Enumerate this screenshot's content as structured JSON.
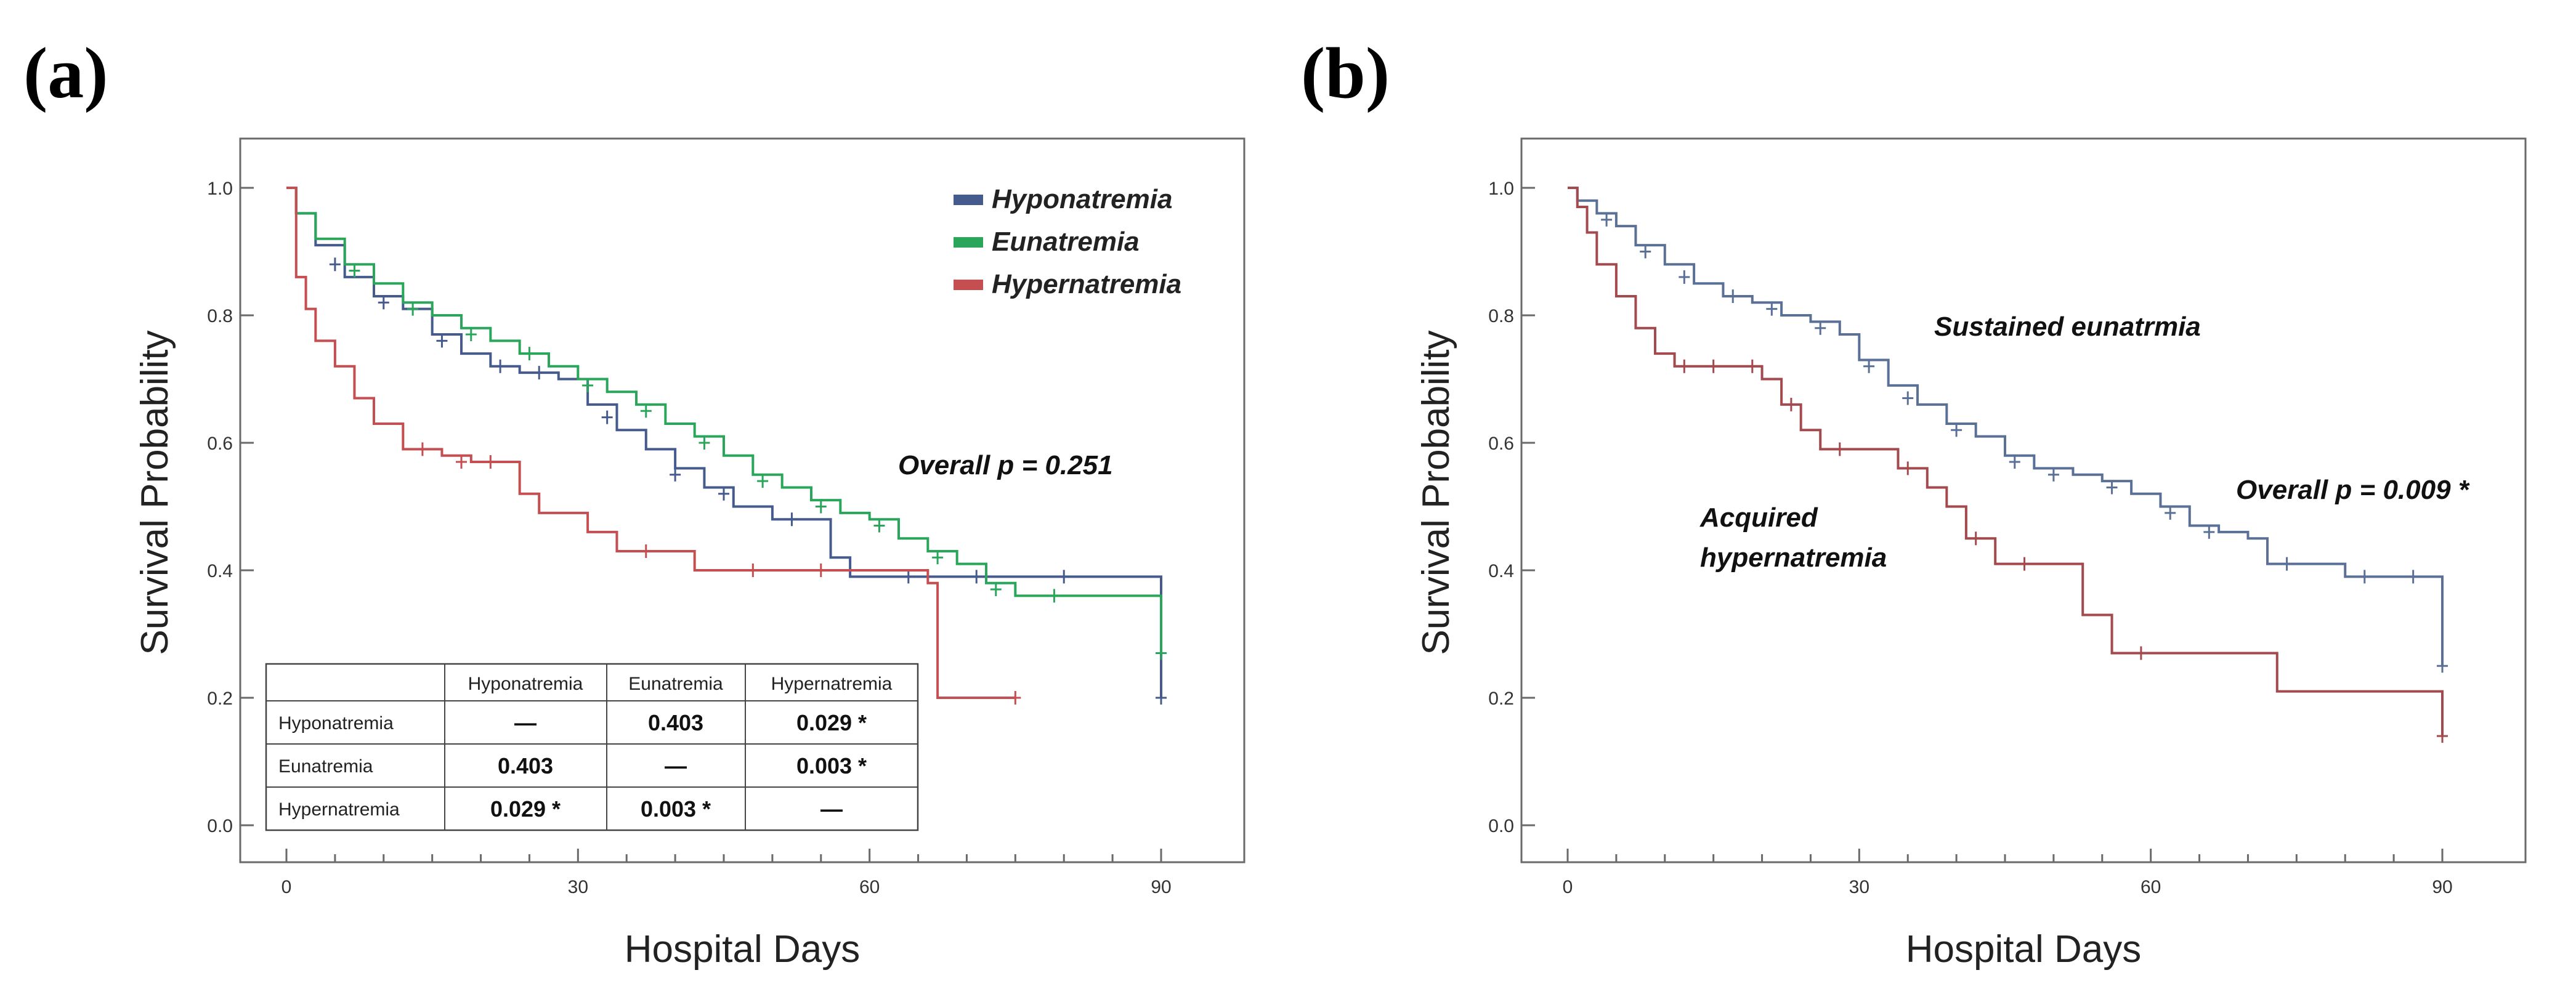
{
  "chart_data": [
    {
      "panel": "(a)",
      "type": "line",
      "subtype": "kaplan-meier survival curves",
      "xlabel": "Hospital Days",
      "ylabel": "Survival Probability",
      "xlim": [
        0,
        90
      ],
      "ylim": [
        0,
        1
      ],
      "xticks": [
        "0",
        "30",
        "60",
        "90"
      ],
      "yticks": [
        "0.0",
        "0.2",
        "0.4",
        "0.6",
        "0.8",
        "1.0"
      ],
      "legend_position": "top-right",
      "series": [
        {
          "name": "Hyponatremia",
          "color": "#465b8d",
          "steps": [
            [
              0,
              1.0
            ],
            [
              1,
              0.96
            ],
            [
              3,
              0.91
            ],
            [
              6,
              0.86
            ],
            [
              9,
              0.83
            ],
            [
              12,
              0.81
            ],
            [
              15,
              0.77
            ],
            [
              18,
              0.74
            ],
            [
              21,
              0.72
            ],
            [
              24,
              0.71
            ],
            [
              28,
              0.7
            ],
            [
              31,
              0.66
            ],
            [
              34,
              0.62
            ],
            [
              37,
              0.59
            ],
            [
              40,
              0.56
            ],
            [
              43,
              0.53
            ],
            [
              46,
              0.5
            ],
            [
              50,
              0.48
            ],
            [
              55,
              0.48
            ],
            [
              56,
              0.42
            ],
            [
              58,
              0.39
            ],
            [
              65,
              0.39
            ],
            [
              90,
              0.39
            ],
            [
              90,
              0.2
            ]
          ],
          "censors": [
            [
              5,
              0.88
            ],
            [
              10,
              0.82
            ],
            [
              16,
              0.76
            ],
            [
              22,
              0.72
            ],
            [
              26,
              0.71
            ],
            [
              33,
              0.64
            ],
            [
              40,
              0.55
            ],
            [
              45,
              0.52
            ],
            [
              52,
              0.48
            ],
            [
              64,
              0.39
            ],
            [
              71,
              0.39
            ],
            [
              80,
              0.39
            ],
            [
              90,
              0.2
            ]
          ]
        },
        {
          "name": "Eunatremia",
          "color": "#2aa65b",
          "steps": [
            [
              0,
              1.0
            ],
            [
              1,
              0.96
            ],
            [
              3,
              0.92
            ],
            [
              6,
              0.88
            ],
            [
              9,
              0.85
            ],
            [
              12,
              0.82
            ],
            [
              15,
              0.8
            ],
            [
              18,
              0.78
            ],
            [
              21,
              0.76
            ],
            [
              24,
              0.74
            ],
            [
              27,
              0.72
            ],
            [
              30,
              0.7
            ],
            [
              33,
              0.68
            ],
            [
              36,
              0.66
            ],
            [
              39,
              0.63
            ],
            [
              42,
              0.61
            ],
            [
              45,
              0.58
            ],
            [
              48,
              0.55
            ],
            [
              51,
              0.53
            ],
            [
              54,
              0.51
            ],
            [
              57,
              0.49
            ],
            [
              60,
              0.48
            ],
            [
              63,
              0.45
            ],
            [
              66,
              0.43
            ],
            [
              69,
              0.41
            ],
            [
              72,
              0.38
            ],
            [
              75,
              0.36
            ],
            [
              80,
              0.36
            ],
            [
              88,
              0.36
            ],
            [
              90,
              0.27
            ]
          ],
          "censors": [
            [
              7,
              0.87
            ],
            [
              13,
              0.81
            ],
            [
              19,
              0.77
            ],
            [
              25,
              0.74
            ],
            [
              31,
              0.69
            ],
            [
              37,
              0.65
            ],
            [
              43,
              0.6
            ],
            [
              49,
              0.54
            ],
            [
              55,
              0.5
            ],
            [
              61,
              0.47
            ],
            [
              67,
              0.42
            ],
            [
              73,
              0.37
            ],
            [
              79,
              0.36
            ],
            [
              90,
              0.27
            ]
          ]
        },
        {
          "name": "Hypernatremia",
          "color": "#c44e50",
          "steps": [
            [
              0,
              1.0
            ],
            [
              1,
              0.86
            ],
            [
              2,
              0.81
            ],
            [
              3,
              0.76
            ],
            [
              5,
              0.72
            ],
            [
              7,
              0.67
            ],
            [
              9,
              0.63
            ],
            [
              12,
              0.59
            ],
            [
              16,
              0.58
            ],
            [
              19,
              0.57
            ],
            [
              24,
              0.52
            ],
            [
              26,
              0.49
            ],
            [
              31,
              0.46
            ],
            [
              34,
              0.43
            ],
            [
              38,
              0.43
            ],
            [
              42,
              0.4
            ],
            [
              50,
              0.4
            ],
            [
              57,
              0.4
            ],
            [
              66,
              0.38
            ],
            [
              67,
              0.2
            ],
            [
              75,
              0.2
            ]
          ],
          "censors": [
            [
              14,
              0.59
            ],
            [
              18,
              0.57
            ],
            [
              21,
              0.57
            ],
            [
              37,
              0.43
            ],
            [
              48,
              0.4
            ],
            [
              55,
              0.4
            ],
            [
              75,
              0.2
            ]
          ]
        }
      ],
      "annotations": [
        "Overall p = 0.251"
      ],
      "pairwise_table": {
        "columns": [
          "Hyponatremia",
          "Eunatremia",
          "Hypernatremia"
        ],
        "rows": [
          {
            "label": "Hyponatremia",
            "cells": [
              "—",
              "0.403",
              "0.029 *"
            ]
          },
          {
            "label": "Eunatremia",
            "cells": [
              "0.403",
              "—",
              "0.003 *"
            ]
          },
          {
            "label": "Hypernatremia",
            "cells": [
              "0.029 *",
              "0.003 *",
              "—"
            ]
          }
        ]
      }
    },
    {
      "panel": "(b)",
      "type": "line",
      "subtype": "kaplan-meier survival curves",
      "xlabel": "Hospital Days",
      "ylabel": "Survival Probability",
      "xlim": [
        0,
        90
      ],
      "ylim": [
        0,
        1
      ],
      "xticks": [
        "0",
        "30",
        "60",
        "90"
      ],
      "yticks": [
        "0.0",
        "0.2",
        "0.4",
        "0.6",
        "0.8",
        "1.0"
      ],
      "series": [
        {
          "name": "Sustained eunatrmia",
          "color": "#5a7096",
          "steps": [
            [
              0,
              1.0
            ],
            [
              1,
              0.98
            ],
            [
              3,
              0.96
            ],
            [
              5,
              0.94
            ],
            [
              7,
              0.91
            ],
            [
              10,
              0.88
            ],
            [
              13,
              0.85
            ],
            [
              16,
              0.83
            ],
            [
              19,
              0.82
            ],
            [
              22,
              0.8
            ],
            [
              25,
              0.79
            ],
            [
              28,
              0.77
            ],
            [
              30,
              0.73
            ],
            [
              33,
              0.69
            ],
            [
              36,
              0.66
            ],
            [
              39,
              0.63
            ],
            [
              42,
              0.61
            ],
            [
              45,
              0.58
            ],
            [
              48,
              0.56
            ],
            [
              52,
              0.55
            ],
            [
              55,
              0.54
            ],
            [
              58,
              0.52
            ],
            [
              61,
              0.5
            ],
            [
              64,
              0.47
            ],
            [
              67,
              0.46
            ],
            [
              70,
              0.45
            ],
            [
              72,
              0.41
            ],
            [
              76,
              0.41
            ],
            [
              80,
              0.39
            ],
            [
              90,
              0.39
            ],
            [
              90,
              0.25
            ]
          ],
          "censors": [
            [
              4,
              0.95
            ],
            [
              8,
              0.9
            ],
            [
              12,
              0.86
            ],
            [
              17,
              0.83
            ],
            [
              21,
              0.81
            ],
            [
              26,
              0.78
            ],
            [
              31,
              0.72
            ],
            [
              35,
              0.67
            ],
            [
              40,
              0.62
            ],
            [
              46,
              0.57
            ],
            [
              50,
              0.55
            ],
            [
              56,
              0.53
            ],
            [
              62,
              0.49
            ],
            [
              66,
              0.46
            ],
            [
              74,
              0.41
            ],
            [
              82,
              0.39
            ],
            [
              87,
              0.39
            ],
            [
              90,
              0.25
            ]
          ]
        },
        {
          "name": "Acquired hypernatremia",
          "color": "#a24a4e",
          "steps": [
            [
              0,
              1.0
            ],
            [
              1,
              0.97
            ],
            [
              2,
              0.93
            ],
            [
              3,
              0.88
            ],
            [
              5,
              0.83
            ],
            [
              7,
              0.78
            ],
            [
              9,
              0.74
            ],
            [
              11,
              0.72
            ],
            [
              14,
              0.72
            ],
            [
              18,
              0.72
            ],
            [
              20,
              0.7
            ],
            [
              22,
              0.66
            ],
            [
              24,
              0.62
            ],
            [
              26,
              0.59
            ],
            [
              30,
              0.59
            ],
            [
              34,
              0.56
            ],
            [
              37,
              0.53
            ],
            [
              39,
              0.5
            ],
            [
              41,
              0.45
            ],
            [
              44,
              0.41
            ],
            [
              50,
              0.41
            ],
            [
              53,
              0.33
            ],
            [
              56,
              0.27
            ],
            [
              62,
              0.27
            ],
            [
              72,
              0.27
            ],
            [
              73,
              0.21
            ],
            [
              90,
              0.21
            ],
            [
              90,
              0.14
            ]
          ],
          "censors": [
            [
              12,
              0.72
            ],
            [
              15,
              0.72
            ],
            [
              19,
              0.72
            ],
            [
              23,
              0.66
            ],
            [
              28,
              0.59
            ],
            [
              35,
              0.56
            ],
            [
              42,
              0.45
            ],
            [
              47,
              0.41
            ],
            [
              59,
              0.27
            ],
            [
              90,
              0.14
            ]
          ]
        }
      ],
      "annotations": [
        "Sustained eunatrmia",
        "Overall p = 0.009 *",
        "Acquired",
        "hypernatremia"
      ]
    }
  ]
}
